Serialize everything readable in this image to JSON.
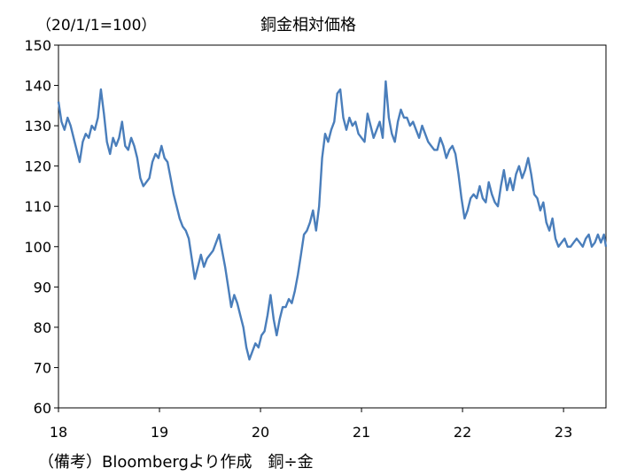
{
  "chart_data": {
    "type": "line",
    "title": "銅金相対価格",
    "unit_note": "（20/1/1=100）",
    "source_note": "（備考）Bloombergより作成　銅÷金",
    "ylim": [
      60,
      150
    ],
    "y_ticks": [
      "60",
      "70",
      "80",
      "90",
      "100",
      "110",
      "120",
      "130",
      "140",
      "150"
    ],
    "xlim": [
      2018.0,
      2023.42
    ],
    "x_ticks": [
      {
        "value": 2018,
        "label": "18"
      },
      {
        "value": 2019,
        "label": "19"
      },
      {
        "value": 2020,
        "label": "20"
      },
      {
        "value": 2021,
        "label": "21"
      },
      {
        "value": 2022,
        "label": "22"
      },
      {
        "value": 2023,
        "label": "23"
      }
    ],
    "grid": false,
    "line_color": "#4a7ebb",
    "series": [
      {
        "x": [
          2018.0,
          2018.03,
          2018.06,
          2018.09,
          2018.12,
          2018.15,
          2018.18,
          2018.21,
          2018.24,
          2018.27,
          2018.3,
          2018.33,
          2018.36,
          2018.39,
          2018.42,
          2018.45,
          2018.48,
          2018.51,
          2018.54,
          2018.57,
          2018.6,
          2018.63,
          2018.66,
          2018.69,
          2018.72,
          2018.75,
          2018.78,
          2018.81,
          2018.84,
          2018.87,
          2018.9,
          2018.93,
          2018.96,
          2018.99,
          2019.02,
          2019.05,
          2019.08,
          2019.11,
          2019.14,
          2019.17,
          2019.2,
          2019.23,
          2019.26,
          2019.29,
          2019.32,
          2019.35,
          2019.38,
          2019.41,
          2019.44,
          2019.47,
          2019.5,
          2019.53,
          2019.56,
          2019.59,
          2019.62,
          2019.65,
          2019.68,
          2019.71,
          2019.74,
          2019.77,
          2019.8,
          2019.83,
          2019.86,
          2019.89,
          2019.92,
          2019.95,
          2019.98,
          2020.01,
          2020.04,
          2020.07,
          2020.1,
          2020.13,
          2020.16,
          2020.19,
          2020.22,
          2020.25,
          2020.28,
          2020.31,
          2020.34,
          2020.37,
          2020.4,
          2020.43,
          2020.46,
          2020.49,
          2020.52,
          2020.55,
          2020.58,
          2020.61,
          2020.64,
          2020.67,
          2020.7,
          2020.73,
          2020.76,
          2020.79,
          2020.82,
          2020.85,
          2020.88,
          2020.91,
          2020.94,
          2020.97,
          2021.0,
          2021.03,
          2021.06,
          2021.09,
          2021.12,
          2021.15,
          2021.18,
          2021.21,
          2021.24,
          2021.27,
          2021.3,
          2021.33,
          2021.36,
          2021.39,
          2021.42,
          2021.45,
          2021.48,
          2021.51,
          2021.54,
          2021.57,
          2021.6,
          2021.63,
          2021.66,
          2021.69,
          2021.72,
          2021.75,
          2021.78,
          2021.81,
          2021.84,
          2021.87,
          2021.9,
          2021.93,
          2021.96,
          2021.99,
          2022.02,
          2022.05,
          2022.08,
          2022.11,
          2022.14,
          2022.17,
          2022.2,
          2022.23,
          2022.26,
          2022.29,
          2022.32,
          2022.35,
          2022.38,
          2022.41,
          2022.44,
          2022.47,
          2022.5,
          2022.53,
          2022.56,
          2022.59,
          2022.62,
          2022.65,
          2022.68,
          2022.71,
          2022.74,
          2022.77,
          2022.8,
          2022.83,
          2022.86,
          2022.89,
          2022.92,
          2022.95,
          2022.98,
          2023.01,
          2023.04,
          2023.07,
          2023.1,
          2023.13,
          2023.16,
          2023.19,
          2023.22,
          2023.25,
          2023.28,
          2023.31,
          2023.34,
          2023.37,
          2023.4,
          2023.42
        ],
        "values": [
          136,
          131,
          129,
          132,
          130,
          127,
          124,
          121,
          126,
          128,
          127,
          130,
          129,
          132,
          139,
          133,
          126,
          123,
          127,
          125,
          127,
          131,
          125,
          124,
          127,
          125,
          122,
          117,
          115,
          116,
          117,
          121,
          123,
          122,
          125,
          122,
          121,
          117,
          113,
          110,
          107,
          105,
          104,
          102,
          97,
          92,
          95,
          98,
          95,
          97,
          98,
          99,
          101,
          103,
          99,
          95,
          90,
          85,
          88,
          86,
          83,
          80,
          75,
          72,
          74,
          76,
          75,
          78,
          79,
          83,
          88,
          82,
          78,
          82,
          85,
          85,
          87,
          86,
          89,
          93,
          98,
          103,
          104,
          106,
          109,
          104,
          110,
          122,
          128,
          126,
          129,
          131,
          138,
          139,
          132,
          129,
          132,
          130,
          131,
          128,
          127,
          126,
          133,
          130,
          127,
          129,
          131,
          127,
          141,
          132,
          128,
          126,
          131,
          134,
          132,
          132,
          130,
          131,
          129,
          127,
          130,
          128,
          126,
          125,
          124,
          124,
          127,
          125,
          122,
          124,
          125,
          123,
          118,
          112,
          107,
          109,
          112,
          113,
          112,
          115,
          112,
          111,
          116,
          113,
          111,
          110,
          115,
          119,
          114,
          117,
          114,
          118,
          120,
          117,
          119,
          122,
          118,
          113,
          112,
          109,
          111,
          106,
          104,
          107,
          102,
          100,
          101,
          102,
          100,
          100,
          101,
          102,
          101,
          100,
          102,
          103,
          100,
          101,
          103,
          101,
          103,
          100
        ]
      }
    ]
  }
}
